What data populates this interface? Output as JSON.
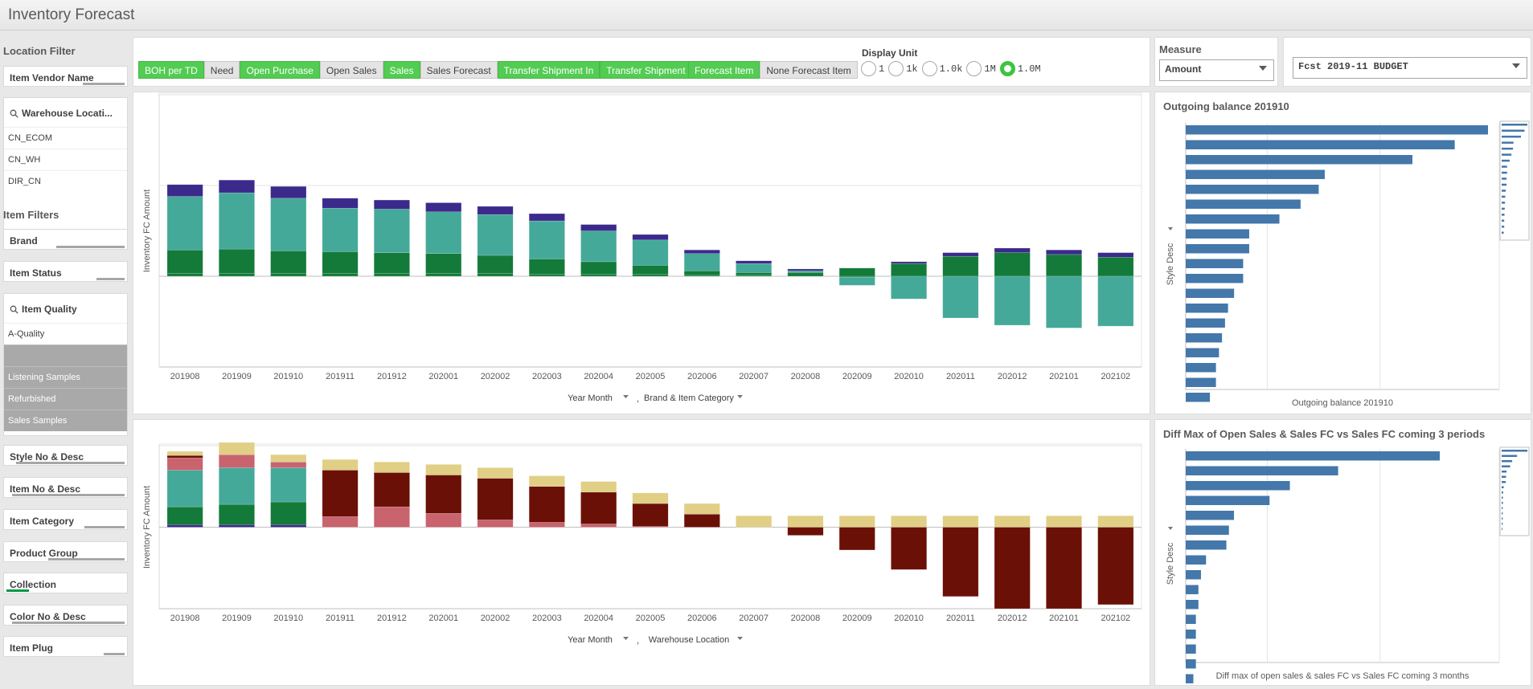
{
  "app": {
    "title": "Inventory Forecast"
  },
  "left": {
    "location_filter_title": "Location Filter",
    "item_vendor_name": "Item Vendor Name",
    "warehouse": {
      "header": "Warehouse Locati...",
      "items": [
        "CN_ECOM",
        "CN_WH",
        "DIR_CN"
      ]
    },
    "item_filters_title": "Item Filters",
    "brand": "Brand",
    "item_status": "Item Status",
    "item_quality": {
      "header": "Item Quality",
      "items": [
        "A-Quality",
        "",
        "Listening Samples",
        "Refurbished",
        "Sales Samples"
      ]
    },
    "style_no_desc": "Style No & Desc",
    "item_no_desc": "Item No & Desc",
    "item_category": "Item Category",
    "product_group": "Product Group",
    "collection": "Collection",
    "color_no_desc": "Color No & Desc",
    "item_plug": "Item Plug"
  },
  "toolbar": {
    "measure_buttons": [
      {
        "label": "BOH per TD",
        "selected": true
      },
      {
        "label": "Need",
        "selected": false
      },
      {
        "label": "Open Purchase",
        "selected": true
      },
      {
        "label": "Open Sales",
        "selected": false
      },
      {
        "label": "Sales",
        "selected": true
      },
      {
        "label": "Sales Forecast",
        "selected": false
      },
      {
        "label": "Transfer Shipment In",
        "selected": true
      },
      {
        "label": "Transfer Shipment Out",
        "selected": true
      }
    ],
    "forecast_buttons": [
      {
        "label": "Forecast Item",
        "selected": true
      },
      {
        "label": "None Forecast Item",
        "selected": false
      }
    ],
    "display_unit_title": "Display Unit",
    "display_units": [
      {
        "label": "1",
        "selected": false
      },
      {
        "label": "1k",
        "selected": false
      },
      {
        "label": "1.0k",
        "selected": false
      },
      {
        "label": "1M",
        "selected": false
      },
      {
        "label": "1.0M",
        "selected": true
      }
    ],
    "measure_title": "Measure",
    "measure_value": "Amount",
    "budget_value": "Fcst 2019-11 BUDGET"
  },
  "colors": {
    "accent_green": "#52cc52",
    "navy": "#3b2a8c",
    "teal": "#45a99a",
    "dark_green": "#147a3a",
    "maroon": "#6b1006",
    "pink": "#c9636e",
    "khaki": "#e0cf85",
    "bar_blue": "#4477aa"
  },
  "chart_data": [
    {
      "type": "bar",
      "stacked": true,
      "ylabel": "Inventory FC Amount",
      "xlabel_dims": [
        "Year Month",
        "Brand & Item Category"
      ],
      "categories": [
        "201908",
        "201909",
        "201910",
        "201911",
        "201912",
        "202001",
        "202002",
        "202003",
        "202004",
        "202005",
        "202006",
        "202007",
        "202008",
        "202009",
        "202010",
        "202011",
        "202012",
        "202101",
        "202102"
      ],
      "ylim": [
        -1.0,
        2.0
      ],
      "gridlines": [
        -1,
        0,
        1,
        2
      ],
      "series": [
        {
          "color": "#147a3a",
          "values": [
            0.03,
            0.03,
            0.03,
            0.03,
            0.03,
            0.03,
            0.03,
            0.02,
            0.02,
            0.02,
            0.01,
            0.01,
            0.0,
            -0.01,
            -0.0,
            -0.0,
            -0.0,
            -0.0,
            -0.0
          ]
        },
        {
          "color": "#147a3a",
          "values": [
            0.26,
            0.27,
            0.25,
            0.24,
            0.23,
            0.22,
            0.2,
            0.17,
            0.14,
            0.1,
            0.05,
            0.03,
            0.04,
            0.09,
            0.14,
            0.22,
            0.26,
            0.24,
            0.21
          ]
        },
        {
          "color": "#45a99a",
          "values": [
            0.59,
            0.62,
            0.58,
            0.48,
            0.48,
            0.46,
            0.45,
            0.42,
            0.34,
            0.28,
            0.19,
            0.1,
            0.02,
            -0.09,
            -0.25,
            -0.46,
            -0.54,
            -0.57,
            -0.55
          ]
        },
        {
          "color": "#3b2a8c",
          "values": [
            0.13,
            0.14,
            0.13,
            0.11,
            0.1,
            0.1,
            0.09,
            0.08,
            0.07,
            0.06,
            0.04,
            0.03,
            0.02,
            0.0,
            0.02,
            0.04,
            0.05,
            0.05,
            0.05
          ]
        }
      ]
    },
    {
      "type": "bar",
      "stacked": true,
      "ylabel": "Inventory FC Amount",
      "xlabel_dims": [
        "Year Month",
        "Warehouse Location"
      ],
      "categories": [
        "201908",
        "201909",
        "201910",
        "201911",
        "201912",
        "202001",
        "202002",
        "202003",
        "202004",
        "202005",
        "202006",
        "202007",
        "202008",
        "202009",
        "202010",
        "202011",
        "202012",
        "202101",
        "202102"
      ],
      "ylim": [
        -1.0,
        1.0
      ],
      "gridlines": [
        -1,
        0,
        1
      ],
      "series": [
        {
          "color": "#3b2a8c",
          "values": [
            0.03,
            0.03,
            0.03,
            0,
            0,
            0,
            0,
            0,
            0,
            0,
            0,
            0,
            0,
            0,
            0,
            0,
            0,
            0,
            0
          ]
        },
        {
          "color": "#147a3a",
          "values": [
            0.22,
            0.25,
            0.28,
            0,
            0,
            0,
            0,
            0,
            0,
            0,
            0,
            0,
            0,
            0,
            0,
            0,
            0,
            0,
            0
          ]
        },
        {
          "color": "#45a99a",
          "values": [
            0.45,
            0.45,
            0.42,
            0,
            0,
            0,
            0,
            0,
            0,
            0,
            0,
            0,
            0,
            0,
            0,
            0,
            0,
            0,
            0
          ]
        },
        {
          "color": "#c9636e",
          "values": [
            0.15,
            0.16,
            0.07,
            0.13,
            0.25,
            0.17,
            0.09,
            0.06,
            0.04,
            0.01,
            0,
            0,
            0,
            0,
            0,
            0,
            0,
            0,
            0
          ]
        },
        {
          "color": "#6b1006",
          "values": [
            0.03,
            0,
            0,
            0.57,
            0.42,
            0.47,
            0.51,
            0.44,
            0.39,
            0.28,
            0.16,
            0,
            -0.1,
            -0.28,
            -0.52,
            -0.85,
            -1.0,
            -1.0,
            -0.95
          ]
        },
        {
          "color": "#e0cf85",
          "values": [
            0.05,
            0.15,
            0.09,
            0.13,
            0.13,
            0.13,
            0.13,
            0.13,
            0.13,
            0.13,
            0.13,
            0.14,
            0.14,
            0.14,
            0.14,
            0.14,
            0.14,
            0.14,
            0.14
          ]
        }
      ]
    },
    {
      "type": "bar",
      "orientation": "horizontal",
      "title": "Outgoing balance 201910",
      "xlabel": "Outgoing balance 201910",
      "ylabel": "Style Desc",
      "values": [
        100,
        89,
        75,
        46,
        44,
        38,
        31,
        21,
        21,
        19,
        19,
        16,
        14,
        13,
        12,
        11,
        10,
        10,
        8
      ]
    },
    {
      "type": "bar",
      "orientation": "horizontal",
      "title": "Diff Max of Open Sales & Sales FC vs Sales FC coming 3 periods",
      "xlabel": "Diff max of open sales & sales FC vs Sales FC coming 3 months",
      "ylabel": "Style Desc",
      "values": [
        100,
        60,
        41,
        33,
        19,
        17,
        16,
        8,
        6,
        5,
        5,
        4,
        4,
        4,
        4,
        3
      ]
    }
  ]
}
